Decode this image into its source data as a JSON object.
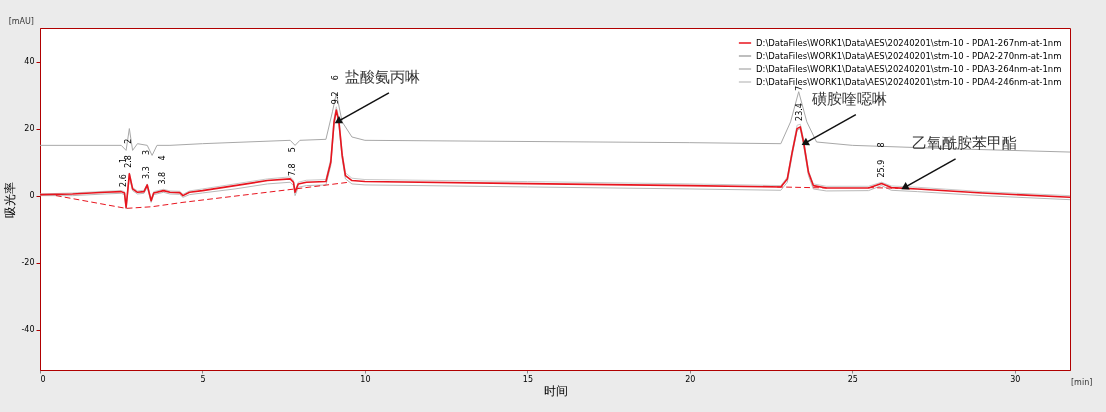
{
  "chart_data": {
    "type": "line",
    "xlabel": "时间",
    "ylabel": "吸光率",
    "legend": "top right",
    "grid": false,
    "xlim": [
      0,
      31.7
    ],
    "xticks": [
      0,
      5,
      10,
      15,
      20,
      25,
      30
    ],
    "ylim": [
      -52,
      50
    ],
    "yticks": [
      -40,
      -20,
      0,
      20,
      40
    ],
    "x": [
      0,
      1,
      2,
      2.5,
      2.6,
      2.65,
      2.75,
      2.85,
      3.0,
      3.2,
      3.3,
      3.42,
      3.5,
      3.8,
      4.0,
      4.3,
      4.4,
      4.6,
      5,
      6,
      7,
      7.7,
      7.8,
      7.85,
      7.95,
      8.2,
      8.8,
      8.95,
      9.05,
      9.12,
      9.2,
      9.3,
      9.4,
      9.6,
      10,
      15,
      20,
      22.8,
      23.0,
      23.15,
      23.3,
      23.4,
      23.5,
      23.65,
      23.8,
      24.2,
      25.5,
      25.9,
      26.2,
      27,
      29,
      31.7
    ],
    "series": [
      {
        "name": "D:\\DataFiles\\WORK1\\Data\\AES\\20240201\\stm-10 - PDA1-267nm-at-1nm",
        "color": "#e8141e",
        "values": [
          0.3,
          0.5,
          1.0,
          1.2,
          0.8,
          -3.5,
          6.5,
          2,
          1.0,
          1.2,
          3.2,
          -1.5,
          0.8,
          1.5,
          1.0,
          0.9,
          0,
          1.0,
          1.5,
          3.0,
          4.5,
          5.0,
          4.0,
          1.0,
          3.5,
          4.0,
          4.2,
          10,
          22,
          25.5,
          22,
          12,
          6,
          4.5,
          4.2,
          3.6,
          3.0,
          2.6,
          5,
          13,
          20,
          20.5,
          16,
          7,
          3,
          2.3,
          2.3,
          3.6,
          2.4,
          2,
          0.8,
          -0.5
        ]
      },
      {
        "name": "D:\\DataFiles\\WORK1\\Data\\AES\\20240201\\stm-10 - PDA2-270nm-at-1nm",
        "color": "#a8a8a8",
        "x": [
          0,
          2.5,
          2.65,
          2.75,
          2.85,
          3.0,
          3.3,
          3.45,
          3.6,
          4,
          5,
          7.7,
          7.85,
          8.0,
          8.8,
          9.0,
          9.12,
          9.3,
          9.6,
          10,
          20,
          22.8,
          23.1,
          23.35,
          23.6,
          23.9,
          25,
          28,
          31.7
        ],
        "values": [
          15,
          15,
          13.5,
          20,
          13.5,
          15.5,
          15,
          12,
          15,
          15,
          15.5,
          16.5,
          15,
          16.5,
          16.8,
          25,
          30.5,
          22,
          17.5,
          16.5,
          15.8,
          15.5,
          22,
          31,
          22,
          16,
          15,
          14,
          13
        ]
      },
      {
        "name": "D:\\DataFiles\\WORK1\\Data\\AES\\20240201\\stm-10 - PDA3-264nm-at-1nm",
        "color": "#b8b8b8",
        "values": [
          0,
          0,
          0.5,
          0.7,
          0.3,
          -4,
          5.5,
          1.5,
          0.5,
          0.7,
          2.5,
          -2,
          0.3,
          1.0,
          0.5,
          0.4,
          -0.5,
          0.3,
          0.8,
          2.0,
          3.5,
          4.0,
          3.0,
          0,
          2.5,
          3.0,
          3.2,
          9,
          21,
          25,
          21,
          11,
          5,
          3.5,
          3.2,
          2.6,
          2.0,
          1.6,
          4,
          12,
          19.5,
          20,
          15,
          6,
          2,
          1.4,
          1.5,
          3.0,
          1.6,
          1.2,
          0,
          -1.2
        ]
      },
      {
        "name": "D:\\DataFiles\\WORK1\\Data\\AES\\20240201\\stm-10 - PDA4-246nm-at-1nm",
        "color": "#c8c8c8",
        "values": [
          0.5,
          0.8,
          1.3,
          1.5,
          1.2,
          -3,
          6.8,
          2.4,
          1.4,
          1.6,
          3.5,
          -1,
          1.2,
          1.9,
          1.4,
          1.3,
          0.4,
          1.4,
          2.0,
          3.5,
          5.0,
          5.6,
          4.6,
          1.5,
          4.0,
          4.6,
          4.8,
          11,
          23,
          26.5,
          23,
          13,
          6.8,
          5.2,
          4.8,
          4.2,
          3.5,
          3.0,
          5.5,
          13.5,
          21,
          21.3,
          16.8,
          7.5,
          3.5,
          2.8,
          2.8,
          4.0,
          2.9,
          2.5,
          1.2,
          0
        ]
      },
      {
        "color": "#e8141e",
        "line_style": "dashed",
        "x": [
          0.5,
          2.65,
          3.45,
          4.4,
          7.85,
          9.5,
          9.6,
          22.7,
          24.2,
          24.3,
          25.5,
          26.4
        ],
        "values": [
          0,
          -3.8,
          -3.3,
          -2,
          2,
          4,
          null,
          2.6,
          2.3,
          null,
          2.4,
          2.2
        ]
      }
    ],
    "annotations": [
      "[mAU]",
      "[min]",
      {
        "text": "2.6",
        "x": 2.6,
        "y": 0.8
      },
      "1",
      {
        "text": "2.8",
        "x": 2.75,
        "y": 6.5
      },
      "2",
      {
        "text": "3.3",
        "x": 3.3,
        "y": 3.2
      },
      "3",
      {
        "text": "3.8",
        "x": 3.8,
        "y": 1.5
      },
      "4",
      {
        "text": "7.8",
        "x": 7.8,
        "y": 4.0
      },
      "5",
      {
        "text": "9.2",
        "x": 9.12,
        "y": 25.5
      },
      "6",
      {
        "text": "23.4",
        "x": 23.4,
        "y": 20.5
      },
      "7",
      {
        "text": "25.9",
        "x": 25.9,
        "y": 3.6
      },
      "8",
      {
        "text": "盐酸氨丙啉",
        "x": 9.2,
        "y": 22.3
      },
      {
        "text": "磺胺喹噁啉",
        "x": 23.57,
        "y": 15.8
      },
      {
        "text": "乙氧酰胺苯甲酯",
        "x": 26.64,
        "y": 2.6
      }
    ]
  }
}
